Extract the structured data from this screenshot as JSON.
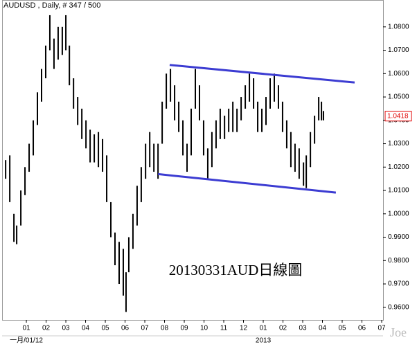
{
  "chart_data": {
    "type": "ohlc",
    "title": "AUDUSD , Daily, # 347 / 500",
    "annotation": "20130331AUD日線圖",
    "watermark": "Joe",
    "color": "#000000",
    "x": [
      -0.05,
      0.16,
      0.37,
      0.51,
      0.72,
      0.93,
      1.14,
      1.35,
      1.56,
      1.77,
      1.98,
      2.19,
      2.4,
      2.61,
      2.82,
      3.0,
      3.18,
      3.39,
      3.6,
      3.81,
      4.02,
      4.23,
      4.44,
      4.65,
      4.86,
      5.07,
      5.28,
      5.49,
      5.7,
      5.91,
      6.05,
      6.19,
      6.4,
      6.61,
      6.82,
      7.04,
      7.25,
      7.46,
      7.67,
      7.88,
      8.09,
      8.3,
      8.51,
      8.72,
      8.93,
      9.14,
      9.35,
      9.56,
      9.77,
      9.98,
      10.19,
      10.4,
      10.61,
      10.82,
      11.04,
      11.25,
      11.46,
      11.67,
      11.88,
      12.09,
      12.3,
      12.51,
      12.72,
      12.93,
      13.14,
      13.35,
      13.56,
      13.77,
      13.98,
      14.19,
      14.4,
      14.61,
      14.82,
      15.04,
      15.18,
      15.39,
      15.6,
      15.81,
      15.95,
      16.05
    ],
    "high": [
      1.023,
      1.025,
      1.0,
      0.995,
      1.01,
      1.02,
      1.03,
      1.04,
      1.052,
      1.062,
      1.072,
      1.085,
      1.075,
      1.08,
      1.08,
      1.085,
      1.072,
      1.058,
      1.05,
      1.045,
      1.04,
      1.036,
      1.034,
      1.035,
      1.032,
      1.025,
      1.005,
      0.992,
      0.988,
      0.985,
      0.975,
      0.99,
      1.0,
      1.012,
      1.02,
      1.03,
      1.035,
      1.03,
      1.03,
      1.048,
      1.06,
      1.062,
      1.055,
      1.048,
      1.04,
      1.03,
      1.045,
      1.062,
      1.055,
      1.04,
      1.028,
      1.035,
      1.04,
      1.045,
      1.042,
      1.045,
      1.048,
      1.045,
      1.05,
      1.055,
      1.06,
      1.058,
      1.048,
      1.045,
      1.05,
      1.058,
      1.06,
      1.055,
      1.048,
      1.04,
      1.035,
      1.03,
      1.028,
      1.022,
      1.025,
      1.035,
      1.042,
      1.05,
      1.048,
      1.044
    ],
    "low": [
      1.015,
      1.005,
      0.988,
      0.987,
      0.995,
      1.008,
      1.018,
      1.025,
      1.038,
      1.048,
      1.058,
      1.07,
      1.062,
      1.066,
      1.068,
      1.07,
      1.055,
      1.045,
      1.038,
      1.032,
      1.028,
      1.022,
      1.022,
      1.02,
      1.018,
      1.005,
      0.99,
      0.978,
      0.97,
      0.965,
      0.958,
      0.975,
      0.985,
      0.995,
      1.005,
      1.015,
      1.02,
      1.018,
      1.015,
      1.03,
      1.045,
      1.048,
      1.04,
      1.035,
      1.025,
      1.018,
      1.025,
      1.045,
      1.04,
      1.025,
      1.015,
      1.02,
      1.028,
      1.032,
      1.032,
      1.035,
      1.035,
      1.035,
      1.04,
      1.045,
      1.048,
      1.045,
      1.035,
      1.035,
      1.038,
      1.045,
      1.048,
      1.045,
      1.035,
      1.028,
      1.02,
      1.018,
      1.015,
      1.012,
      1.011,
      1.02,
      1.03,
      1.04,
      1.04,
      1.04
    ],
    "trendlines": [
      {
        "color": "#3c3cd2",
        "x": [
          8.26,
          17.63
        ],
        "values": [
          1.0637,
          1.0562
        ]
      },
      {
        "color": "#3c3cd2",
        "x": [
          7.67,
          16.68
        ],
        "values": [
          1.017,
          1.0091
        ]
      }
    ],
    "last_price": 1.0418,
    "last_price_color": "#e00000",
    "xlim": [
      -0.23,
      19.07
    ],
    "xticks": [
      {
        "value": 1,
        "label": "01"
      },
      {
        "value": 2,
        "label": "02"
      },
      {
        "value": 3,
        "label": "03"
      },
      {
        "value": 4,
        "label": "04"
      },
      {
        "value": 5,
        "label": "05"
      },
      {
        "value": 6,
        "label": "06"
      },
      {
        "value": 7,
        "label": "07"
      },
      {
        "value": 8,
        "label": "08"
      },
      {
        "value": 9,
        "label": "09"
      },
      {
        "value": 10,
        "label": "10"
      },
      {
        "value": 11,
        "label": "11"
      },
      {
        "value": 12,
        "label": "12"
      },
      {
        "value": 13,
        "label": "01"
      },
      {
        "value": 14,
        "label": "02"
      },
      {
        "value": 15,
        "label": "03"
      },
      {
        "value": 16,
        "label": "04"
      },
      {
        "value": 17,
        "label": "05"
      },
      {
        "value": 18,
        "label": "06"
      },
      {
        "value": 19,
        "label": "07"
      }
    ],
    "x_period_labels": [
      {
        "value": 1,
        "label": "一月/01/12"
      },
      {
        "value": 13,
        "label": "2013"
      }
    ],
    "ylim": [
      0.9546,
      1.0915
    ],
    "yticks": [
      {
        "value": 0.96,
        "label": "0.9600"
      },
      {
        "value": 0.97,
        "label": "0.9700"
      },
      {
        "value": 0.98,
        "label": "0.9800"
      },
      {
        "value": 0.99,
        "label": "0.9900"
      },
      {
        "value": 1.0,
        "label": "1.0000"
      },
      {
        "value": 1.01,
        "label": "1.0100"
      },
      {
        "value": 1.02,
        "label": "1.0200"
      },
      {
        "value": 1.03,
        "label": "1.0300"
      },
      {
        "value": 1.04,
        "label": "1.0400"
      },
      {
        "value": 1.05,
        "label": "1.0500"
      },
      {
        "value": 1.06,
        "label": "1.0600"
      },
      {
        "value": 1.07,
        "label": "1.0700"
      },
      {
        "value": 1.08,
        "label": "1.0800"
      }
    ]
  }
}
